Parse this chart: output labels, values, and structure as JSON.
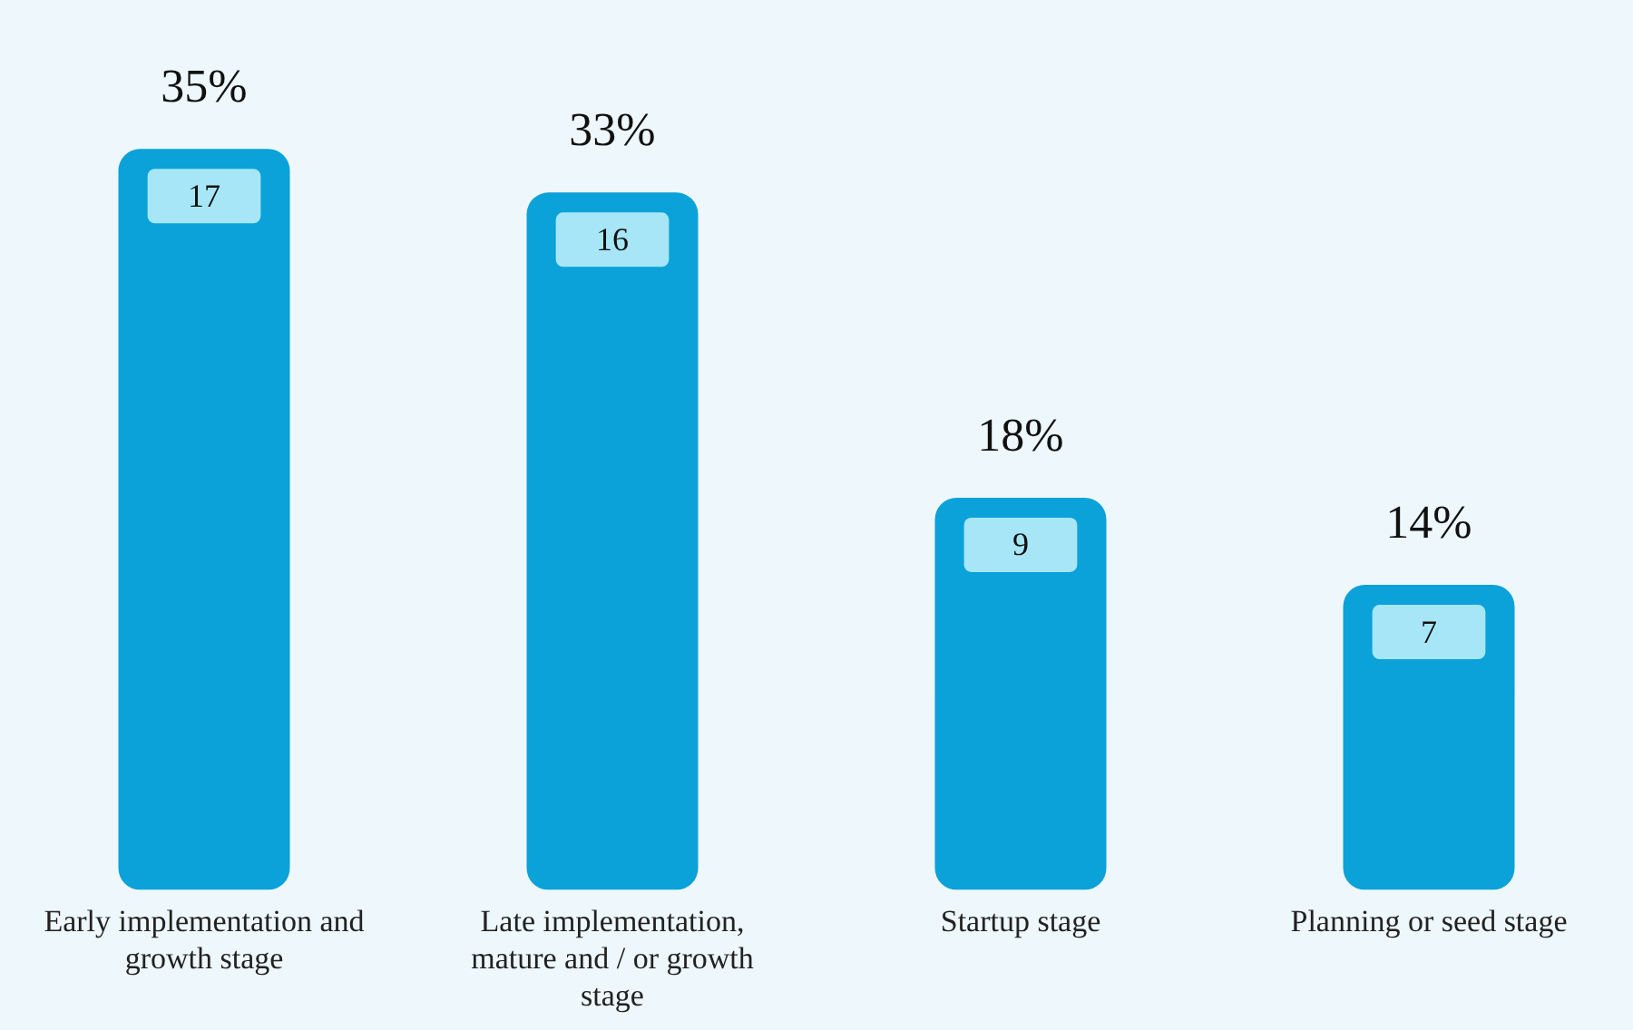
{
  "chart_data": {
    "type": "bar",
    "categories": [
      "Early implementation and growth stage",
      "Late implementation, mature and / or growth stage",
      "Startup stage",
      "Planning or seed stage"
    ],
    "values": [
      17,
      16,
      9,
      7
    ],
    "color": "#0aa2d8",
    "data_labels": true,
    "annotations": [
      {
        "text": "35%",
        "x": "Early implementation and growth stage",
        "y": 17
      },
      {
        "text": "33%",
        "x": "Late implementation, mature and / or growth stage",
        "y": 16
      },
      {
        "text": "18%",
        "x": "Startup stage",
        "y": 9
      },
      {
        "text": "14%",
        "x": "Planning or seed stage",
        "y": 7
      }
    ],
    "grid": false,
    "legend": false,
    "tick_labels": "x"
  }
}
